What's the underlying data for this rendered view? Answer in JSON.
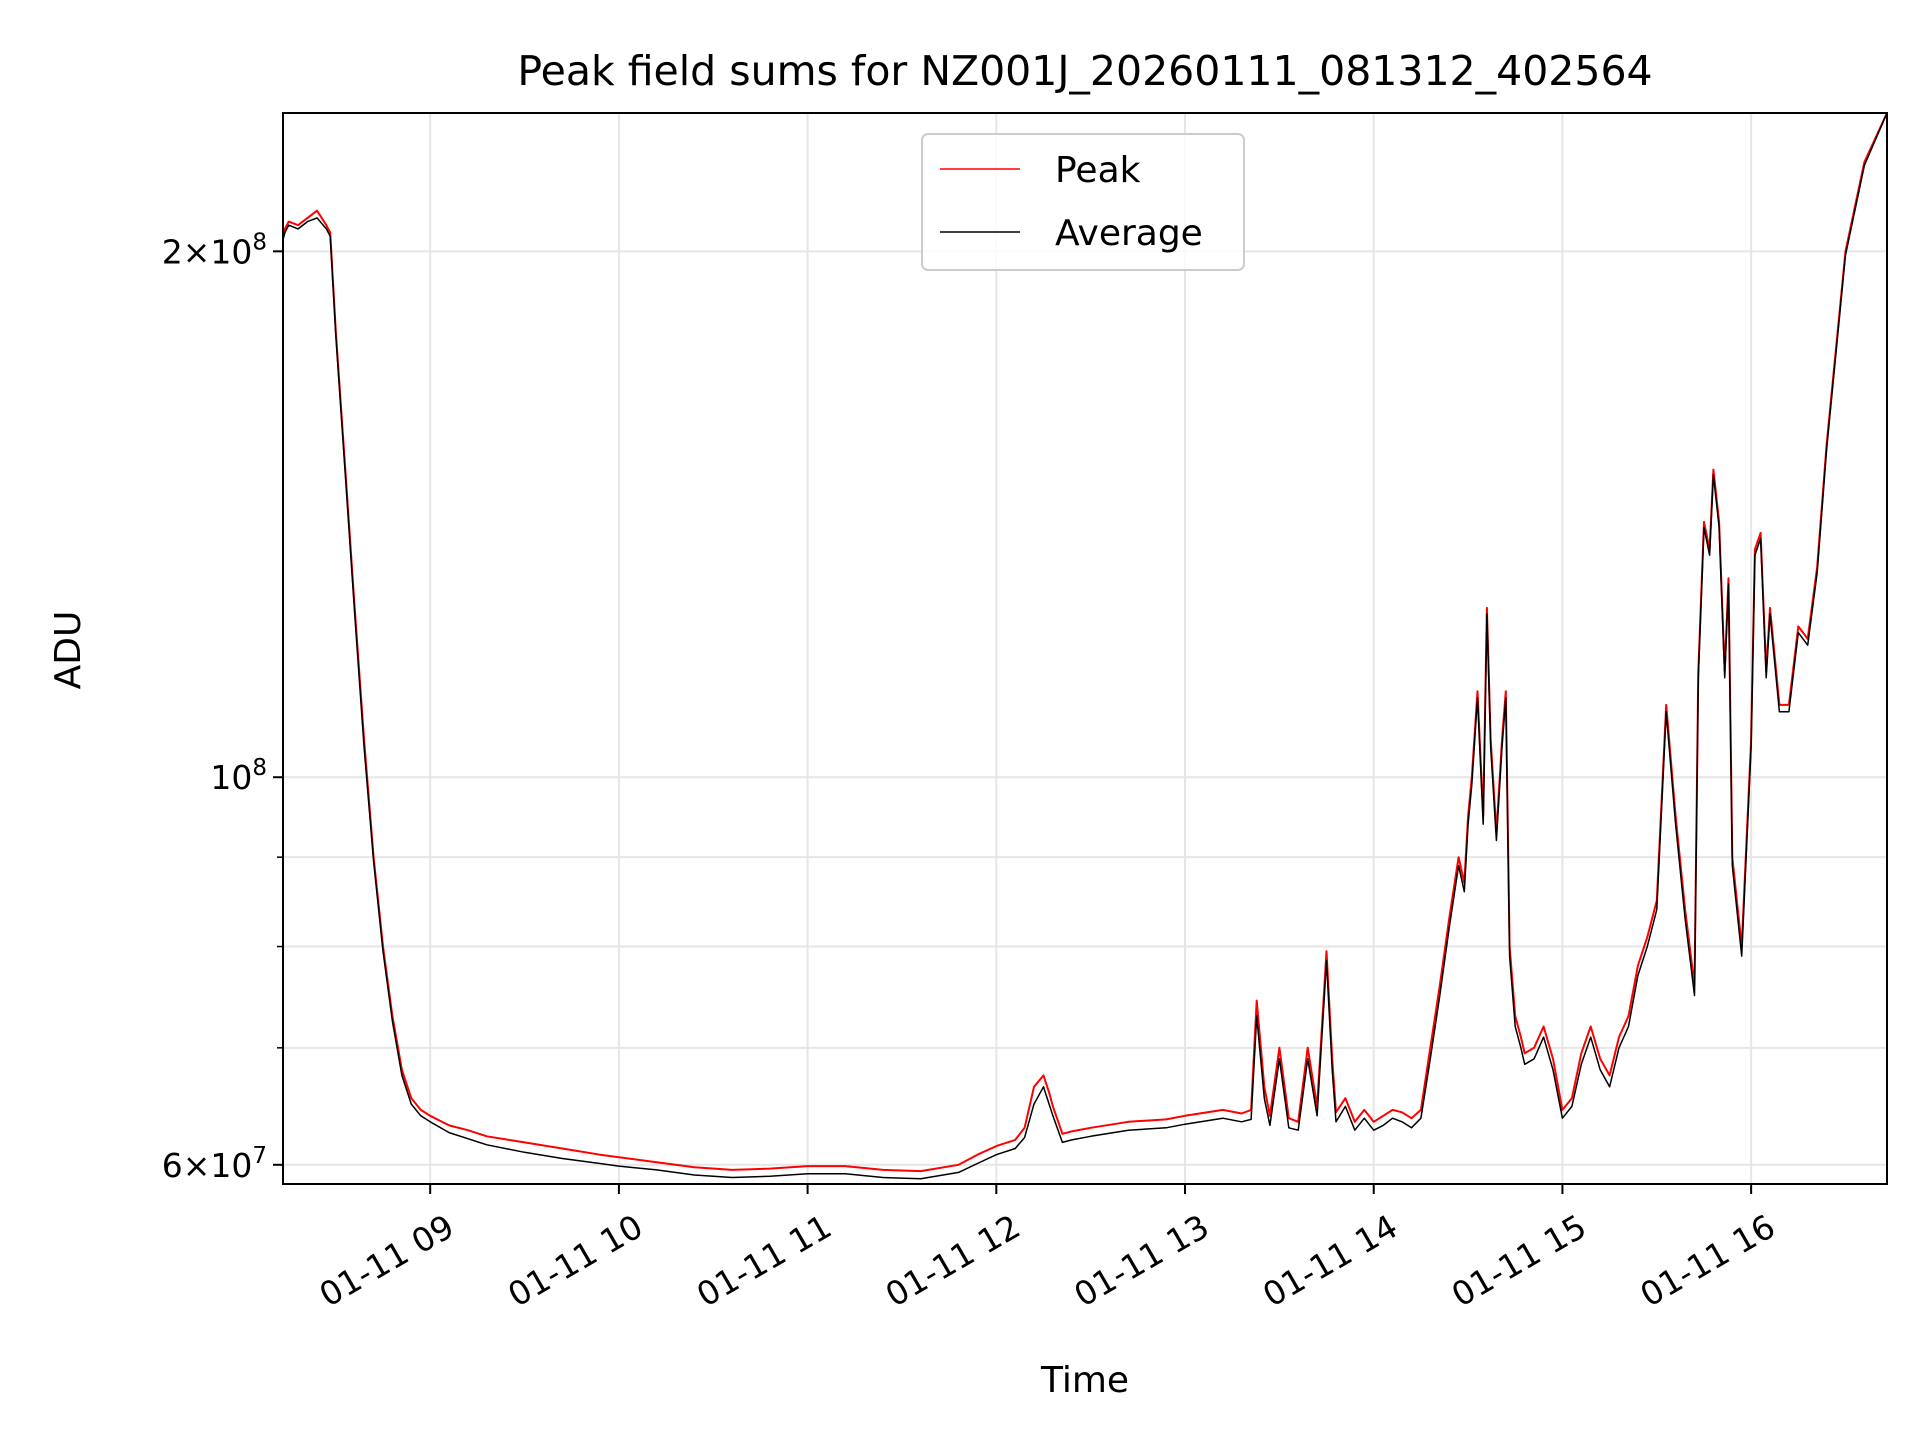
{
  "chart_data": {
    "type": "line",
    "title": "Peak field sums for NZ001J_20260111_081312_402564",
    "xlabel": "Time",
    "ylabel": "ADU",
    "yscale": "log",
    "xlim": [
      8.22,
      16.72
    ],
    "ylim": [
      58500000,
      240000000
    ],
    "grid": true,
    "legend_position": "top-center",
    "x_ticks": [
      {
        "value": 9,
        "label": "01-11 09"
      },
      {
        "value": 10,
        "label": "01-11 10"
      },
      {
        "value": 11,
        "label": "01-11 11"
      },
      {
        "value": 12,
        "label": "01-11 12"
      },
      {
        "value": 13,
        "label": "01-11 13"
      },
      {
        "value": 14,
        "label": "01-11 14"
      },
      {
        "value": 15,
        "label": "01-11 15"
      },
      {
        "value": 16,
        "label": "01-11 16"
      }
    ],
    "y_major_ticks": [
      {
        "value": 60000000,
        "base": "6",
        "exp": "7"
      },
      {
        "value": 100000000,
        "base": "",
        "exp": "8"
      },
      {
        "value": 200000000,
        "base": "2",
        "exp": "8"
      }
    ],
    "y_minor_grid": [
      70000000,
      80000000,
      90000000
    ],
    "colors": {
      "peak": "#ff0000",
      "average": "#000000"
    },
    "legend": [
      "Peak",
      "Average"
    ],
    "series": [
      {
        "name": "Peak",
        "x": [
          8.22,
          8.23,
          8.25,
          8.3,
          8.35,
          8.4,
          8.45,
          8.47,
          8.5,
          8.55,
          8.6,
          8.65,
          8.7,
          8.75,
          8.8,
          8.85,
          8.9,
          8.95,
          9.0,
          9.1,
          9.2,
          9.3,
          9.5,
          9.7,
          9.9,
          10.0,
          10.2,
          10.4,
          10.6,
          10.8,
          11.0,
          11.2,
          11.4,
          11.6,
          11.8,
          11.9,
          12.0,
          12.1,
          12.15,
          12.2,
          12.25,
          12.28,
          12.3,
          12.35,
          12.4,
          12.5,
          12.7,
          12.9,
          13.0,
          13.2,
          13.3,
          13.35,
          13.38,
          13.42,
          13.45,
          13.5,
          13.55,
          13.6,
          13.65,
          13.7,
          13.75,
          13.78,
          13.8,
          13.85,
          13.9,
          13.95,
          14.0,
          14.05,
          14.1,
          14.15,
          14.2,
          14.25,
          14.3,
          14.35,
          14.4,
          14.45,
          14.48,
          14.5,
          14.52,
          14.55,
          14.58,
          14.6,
          14.62,
          14.65,
          14.68,
          14.7,
          14.72,
          14.75,
          14.78,
          14.8,
          14.85,
          14.9,
          14.95,
          15.0,
          15.05,
          15.1,
          15.15,
          15.2,
          15.25,
          15.3,
          15.35,
          15.4,
          15.45,
          15.5,
          15.55,
          15.6,
          15.65,
          15.7,
          15.72,
          15.75,
          15.78,
          15.8,
          15.83,
          15.86,
          15.88,
          15.9,
          15.95,
          16.0,
          16.02,
          16.05,
          16.08,
          16.1,
          16.15,
          16.2,
          16.25,
          16.3,
          16.35,
          16.4,
          16.5,
          16.6,
          16.72
        ],
        "y": [
          205000000,
          206000000,
          208000000,
          207000000,
          209000000,
          211000000,
          207000000,
          205000000,
          180000000,
          150000000,
          125000000,
          105000000,
          90000000,
          80000000,
          73000000,
          68000000,
          65500000,
          64500000,
          64000000,
          63200000,
          62800000,
          62300000,
          61800000,
          61300000,
          60800000,
          60600000,
          60200000,
          59800000,
          59600000,
          59700000,
          59900000,
          59900000,
          59600000,
          59500000,
          60000000,
          60800000,
          61500000,
          62000000,
          63000000,
          66500000,
          67500000,
          66000000,
          64800000,
          62500000,
          62700000,
          63000000,
          63500000,
          63700000,
          64000000,
          64500000,
          64200000,
          64500000,
          74500000,
          66500000,
          64000000,
          70000000,
          63800000,
          63500000,
          70000000,
          64800000,
          79500000,
          69000000,
          64300000,
          65500000,
          63500000,
          64500000,
          63500000,
          64000000,
          64500000,
          64300000,
          63800000,
          64500000,
          70000000,
          76000000,
          83000000,
          90000000,
          87000000,
          95000000,
          100000000,
          112000000,
          95000000,
          125000000,
          105000000,
          93000000,
          105000000,
          112000000,
          80000000,
          73000000,
          71000000,
          69500000,
          70000000,
          72000000,
          69000000,
          64500000,
          65500000,
          69500000,
          72000000,
          69000000,
          67500000,
          71000000,
          73000000,
          78000000,
          81000000,
          85000000,
          110000000,
          95000000,
          84000000,
          76000000,
          115000000,
          140000000,
          135000000,
          150000000,
          140000000,
          115000000,
          130000000,
          90000000,
          80000000,
          105000000,
          135000000,
          138000000,
          115000000,
          125000000,
          110000000,
          110000000,
          122000000,
          120000000,
          132000000,
          155000000,
          200000000,
          225000000,
          240000000
        ]
      },
      {
        "name": "Average",
        "x": [
          8.22,
          8.23,
          8.25,
          8.3,
          8.35,
          8.4,
          8.45,
          8.47,
          8.5,
          8.55,
          8.6,
          8.65,
          8.7,
          8.75,
          8.8,
          8.85,
          8.9,
          8.95,
          9.0,
          9.1,
          9.2,
          9.3,
          9.5,
          9.7,
          9.9,
          10.0,
          10.2,
          10.4,
          10.6,
          10.8,
          11.0,
          11.2,
          11.4,
          11.6,
          11.8,
          11.9,
          12.0,
          12.1,
          12.15,
          12.2,
          12.25,
          12.28,
          12.3,
          12.35,
          12.4,
          12.5,
          12.7,
          12.9,
          13.0,
          13.2,
          13.3,
          13.35,
          13.38,
          13.42,
          13.45,
          13.5,
          13.55,
          13.6,
          13.65,
          13.7,
          13.75,
          13.78,
          13.8,
          13.85,
          13.9,
          13.95,
          14.0,
          14.05,
          14.1,
          14.15,
          14.2,
          14.25,
          14.3,
          14.35,
          14.4,
          14.45,
          14.48,
          14.5,
          14.52,
          14.55,
          14.58,
          14.6,
          14.62,
          14.65,
          14.68,
          14.7,
          14.72,
          14.75,
          14.78,
          14.8,
          14.85,
          14.9,
          14.95,
          15.0,
          15.05,
          15.1,
          15.15,
          15.2,
          15.25,
          15.3,
          15.35,
          15.4,
          15.45,
          15.5,
          15.55,
          15.6,
          15.65,
          15.7,
          15.72,
          15.75,
          15.78,
          15.8,
          15.83,
          15.86,
          15.88,
          15.9,
          15.95,
          16.0,
          16.02,
          16.05,
          16.08,
          16.1,
          16.15,
          16.2,
          16.25,
          16.3,
          16.35,
          16.4,
          16.5,
          16.6,
          16.72
        ],
        "y": [
          203000000,
          205000000,
          207000000,
          206000000,
          208000000,
          209000000,
          206000000,
          204000000,
          179000000,
          149000000,
          124000000,
          104000000,
          89500000,
          79500000,
          72500000,
          67500000,
          65000000,
          64000000,
          63500000,
          62600000,
          62100000,
          61600000,
          61000000,
          60500000,
          60100000,
          59900000,
          59600000,
          59200000,
          59000000,
          59100000,
          59300000,
          59300000,
          59000000,
          58900000,
          59400000,
          60100000,
          60800000,
          61300000,
          62200000,
          65000000,
          66500000,
          65000000,
          64000000,
          61800000,
          62000000,
          62300000,
          62800000,
          63000000,
          63300000,
          63800000,
          63500000,
          63700000,
          73000000,
          65500000,
          63200000,
          69000000,
          63000000,
          62800000,
          69000000,
          64000000,
          78500000,
          68000000,
          63500000,
          64800000,
          62800000,
          63800000,
          62800000,
          63200000,
          63800000,
          63500000,
          63000000,
          63800000,
          69000000,
          75000000,
          82000000,
          89000000,
          86000000,
          94000000,
          99000000,
          111000000,
          94000000,
          124000000,
          104000000,
          92000000,
          104000000,
          111000000,
          79000000,
          72000000,
          70000000,
          68500000,
          69000000,
          71000000,
          68000000,
          63800000,
          64800000,
          68500000,
          71000000,
          68000000,
          66500000,
          70000000,
          72000000,
          77000000,
          80000000,
          84000000,
          109000000,
          94000000,
          83000000,
          75000000,
          114000000,
          139000000,
          134000000,
          149000000,
          139000000,
          114000000,
          129000000,
          89000000,
          79000000,
          104000000,
          134000000,
          137000000,
          114000000,
          124000000,
          109000000,
          109000000,
          121000000,
          119000000,
          131000000,
          154000000,
          199000000,
          224000000,
          240000000
        ]
      }
    ]
  }
}
